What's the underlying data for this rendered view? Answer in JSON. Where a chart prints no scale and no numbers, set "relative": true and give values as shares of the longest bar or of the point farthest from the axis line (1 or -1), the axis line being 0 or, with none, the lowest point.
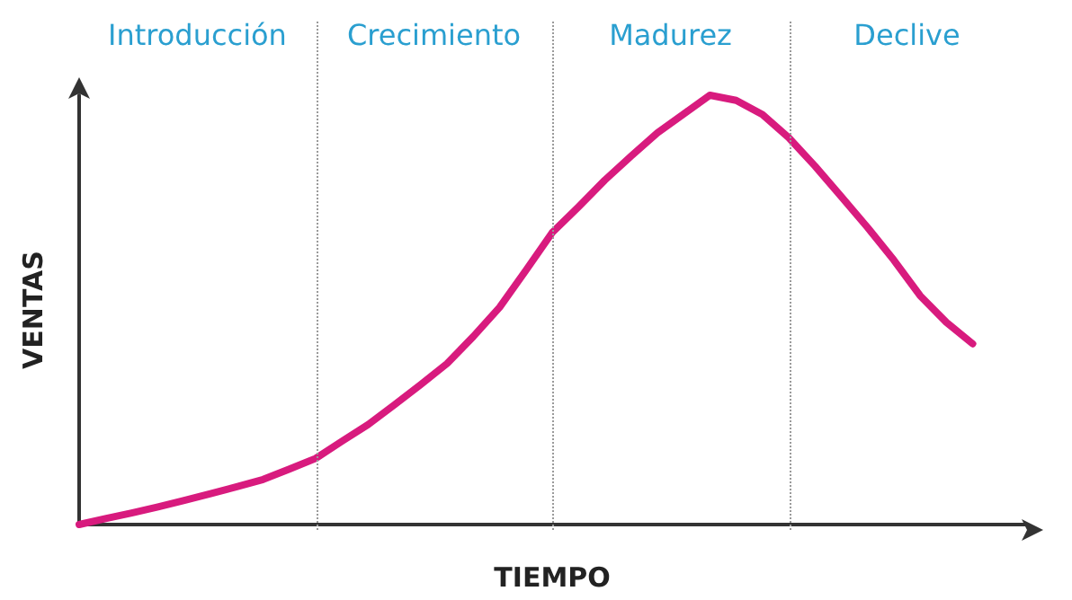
{
  "chart_data": {
    "type": "line",
    "relative": true,
    "xlabel": "TIEMPO",
    "ylabel": "VENTAS",
    "marker": "none",
    "grid": "x",
    "line_style": "solid",
    "categories": [
      null,
      null,
      null,
      null,
      null,
      null,
      null,
      null,
      null,
      null,
      null,
      null,
      null,
      null,
      null,
      null,
      null,
      null,
      null,
      null,
      null,
      null,
      null,
      null,
      null,
      null,
      null,
      null,
      null,
      null,
      null,
      null,
      null,
      null,
      null,
      null,
      null
    ],
    "series": [
      {
        "color": "#d81b7e",
        "values": [
          0,
          0.014,
          0.027,
          0.041,
          0.056,
          0.072,
          0.088,
          0.105,
          0.129,
          0.154,
          0.194,
          0.233,
          0.279,
          0.326,
          0.375,
          0.438,
          0.506,
          0.592,
          0.68,
          0.74,
          0.802,
          0.858,
          0.912,
          0.956,
          1,
          0.988,
          0.955,
          0.901,
          0.835,
          0.764,
          0.692,
          0.616,
          0.533,
          0.471,
          0.421,
          null,
          null
        ]
      }
    ],
    "annotations": [
      "Introducción",
      "Crecimiento",
      "Madurez",
      "Declive"
    ]
  }
}
